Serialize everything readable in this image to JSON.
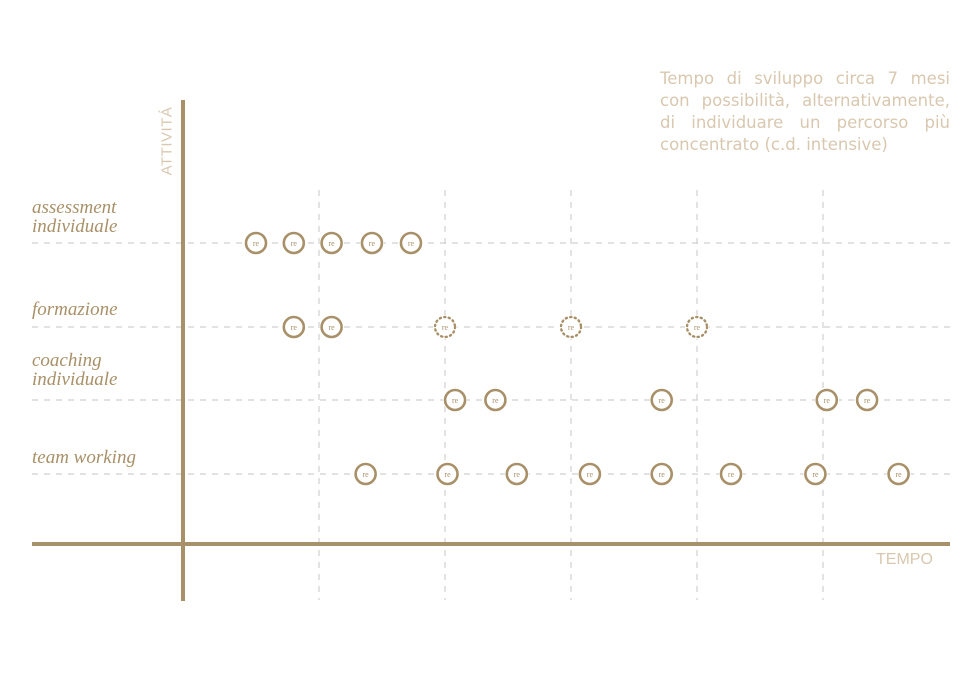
{
  "note": {
    "lines": [
      "Tempo di sviluppo circa 7 mesi",
      "con possibilità, alternativamente,",
      "di individuare un percorso più",
      "concentrato (c.d. intensive)"
    ]
  },
  "axes": {
    "y_label": "ATTIVITÁ",
    "x_label": "TEMPO"
  },
  "rows": [
    {
      "label_lines": [
        "assessment",
        "individuale"
      ]
    },
    {
      "label_lines": [
        "formazione"
      ]
    },
    {
      "label_lines": [
        "coaching",
        "individuale"
      ]
    },
    {
      "label_lines": [
        "team working"
      ]
    }
  ],
  "marker_text": "re",
  "colors": {
    "primary": "#a89068",
    "light": "#d9c8b0",
    "grid": "#d0d0d0"
  },
  "sessions": [
    {
      "row": 0,
      "time": 0.5,
      "style": "solid"
    },
    {
      "row": 0,
      "time": 0.8,
      "style": "solid"
    },
    {
      "row": 0,
      "time": 1.1,
      "style": "solid"
    },
    {
      "row": 0,
      "time": 1.42,
      "style": "solid"
    },
    {
      "row": 0,
      "time": 1.73,
      "style": "solid"
    },
    {
      "row": 1,
      "time": 0.8,
      "style": "solid"
    },
    {
      "row": 1,
      "time": 1.1,
      "style": "solid"
    },
    {
      "row": 1,
      "time": 2.0,
      "style": "dotted"
    },
    {
      "row": 1,
      "time": 3.0,
      "style": "dotted"
    },
    {
      "row": 1,
      "time": 4.0,
      "style": "dotted"
    },
    {
      "row": 2,
      "time": 2.08,
      "style": "solid"
    },
    {
      "row": 2,
      "time": 2.4,
      "style": "solid"
    },
    {
      "row": 2,
      "time": 3.72,
      "style": "solid"
    },
    {
      "row": 2,
      "time": 5.03,
      "style": "solid"
    },
    {
      "row": 2,
      "time": 5.35,
      "style": "solid"
    },
    {
      "row": 3,
      "time": 1.37,
      "style": "solid"
    },
    {
      "row": 3,
      "time": 2.02,
      "style": "solid"
    },
    {
      "row": 3,
      "time": 2.57,
      "style": "solid"
    },
    {
      "row": 3,
      "time": 3.15,
      "style": "solid"
    },
    {
      "row": 3,
      "time": 3.72,
      "style": "solid"
    },
    {
      "row": 3,
      "time": 4.27,
      "style": "solid"
    },
    {
      "row": 3,
      "time": 4.94,
      "style": "solid"
    },
    {
      "row": 3,
      "time": 5.6,
      "style": "solid"
    }
  ],
  "time_gridlines": [
    1,
    2,
    3,
    4,
    5
  ]
}
